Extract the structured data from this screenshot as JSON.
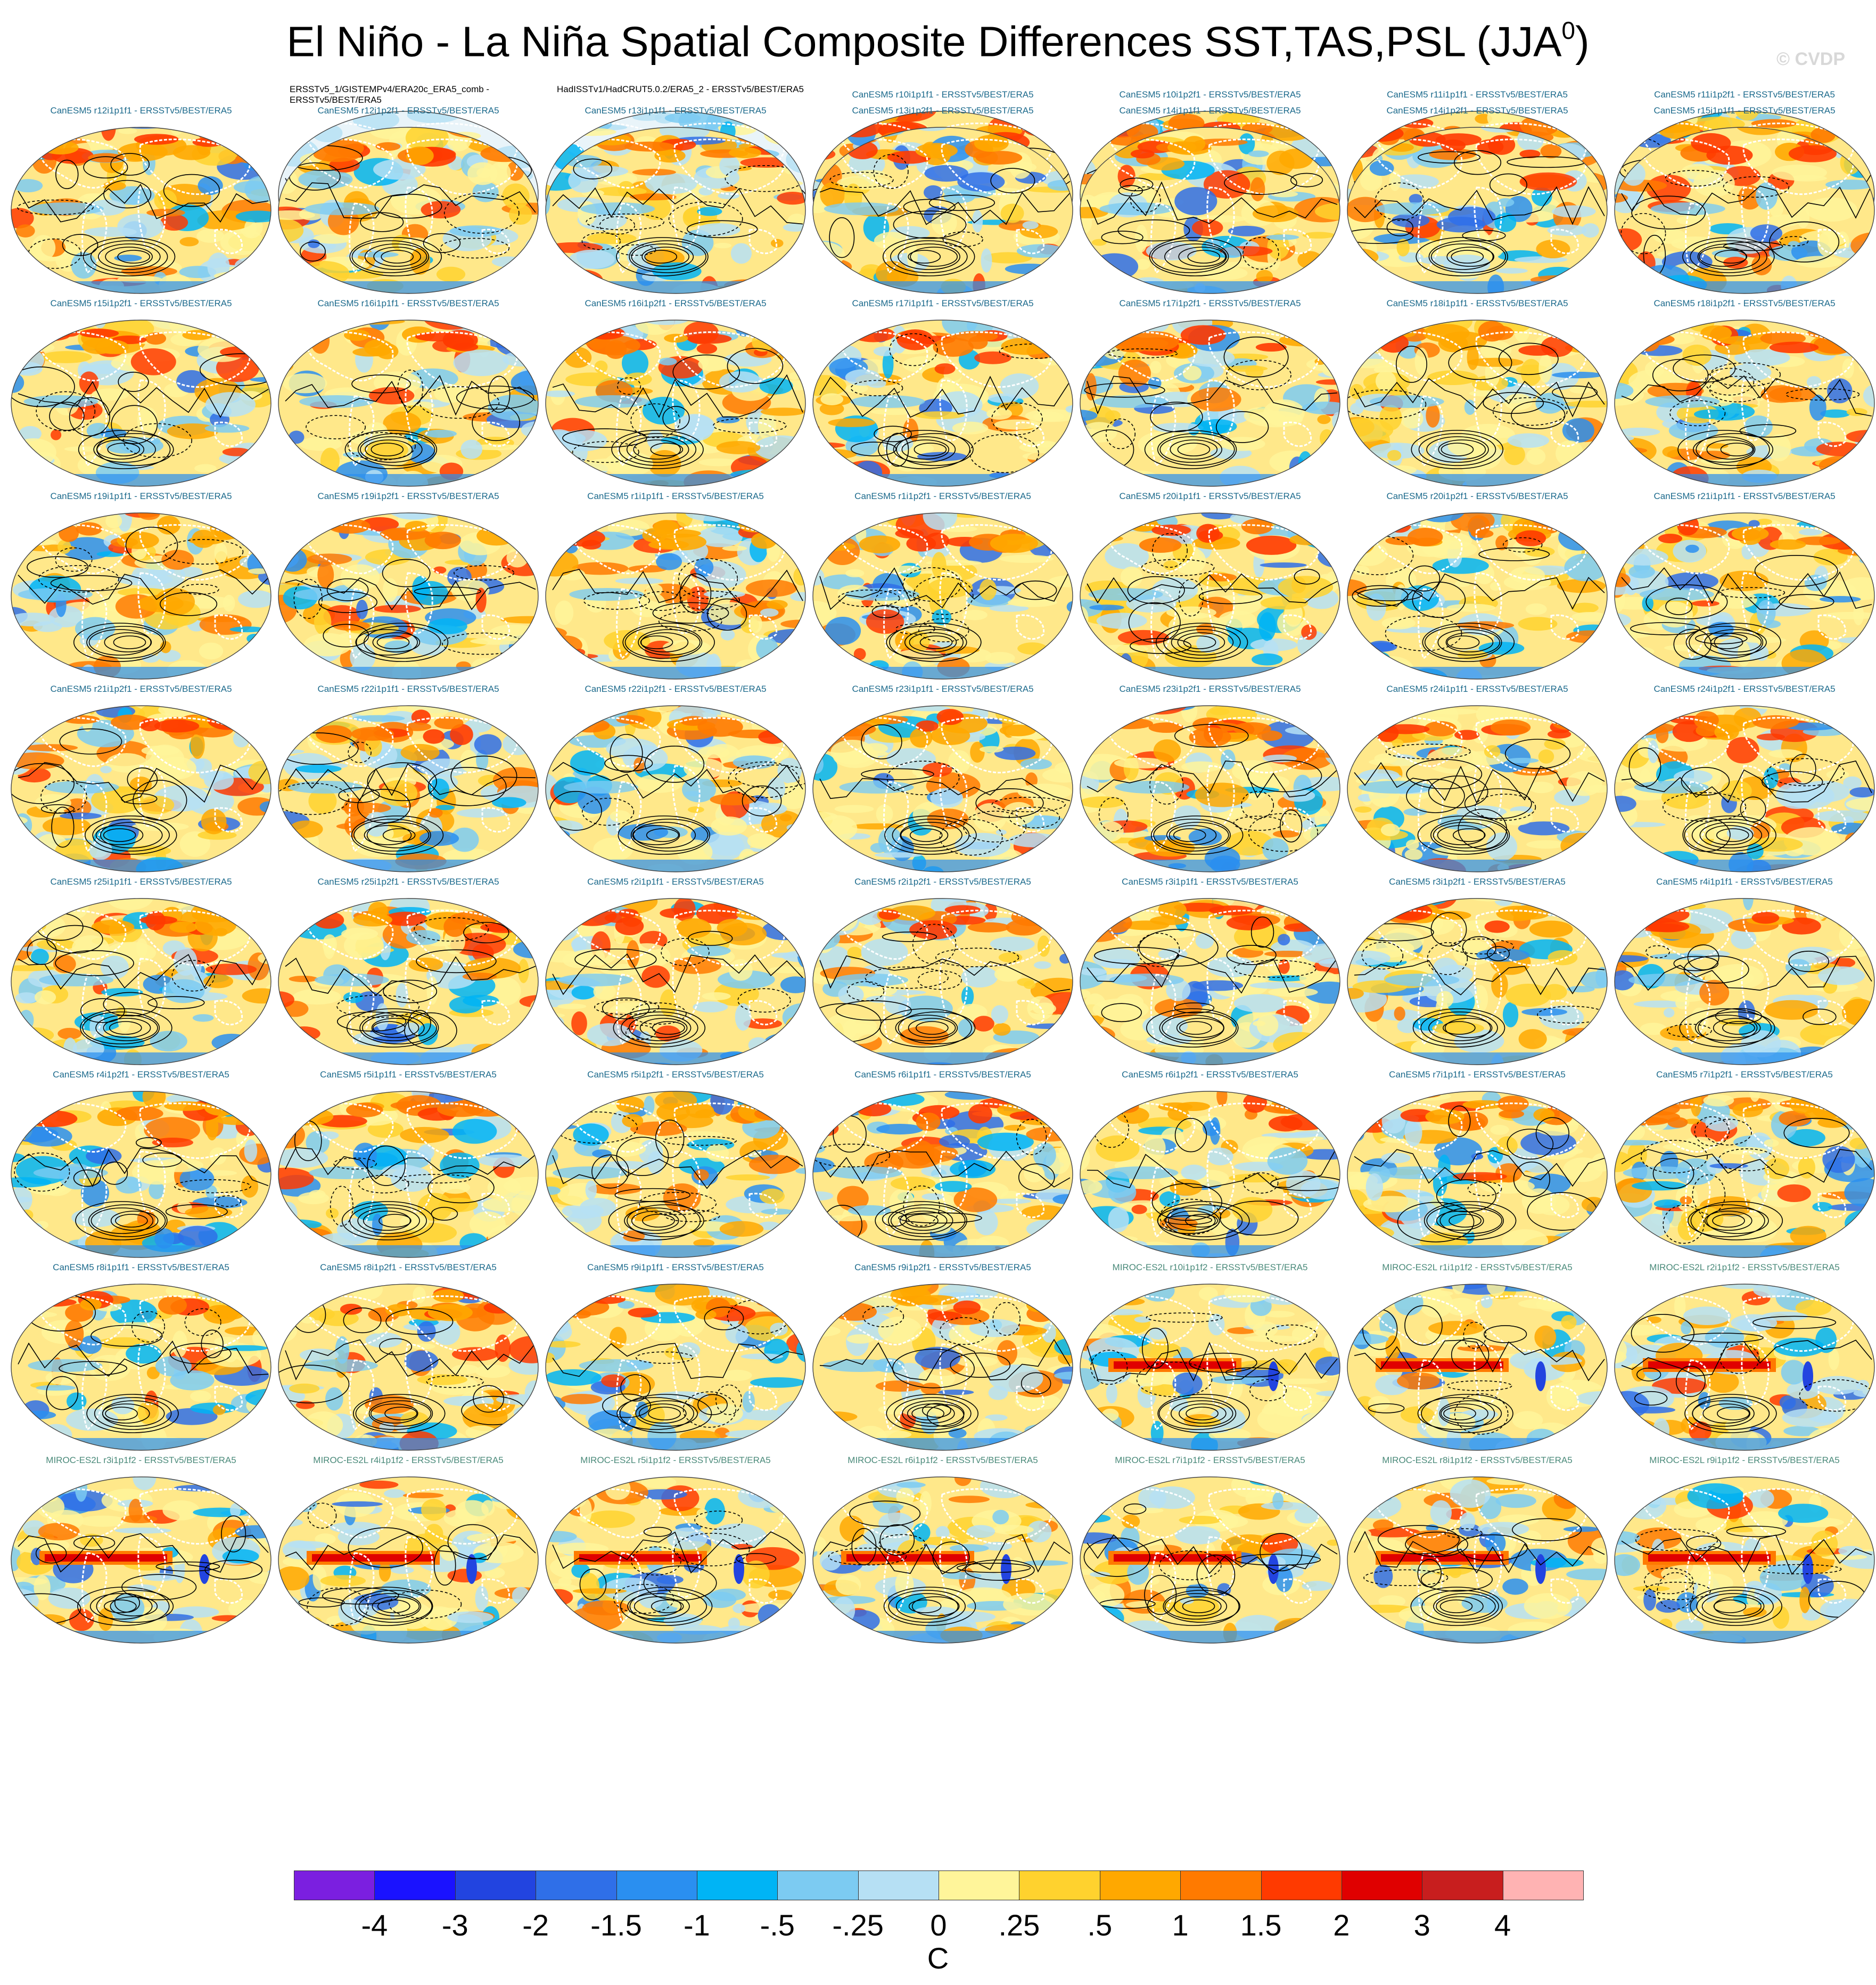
{
  "title": "El Niño - La Niña Spatial Composite Differences SST,TAS,PSL (JJA",
  "title_sup": "0",
  "title_close": ")",
  "watermark": "© CVDP",
  "units": "C",
  "colors": {
    "model_label": "#1c6a8c",
    "miroc_label": "#4a8a7a",
    "land_contour": "#ffffff",
    "psl_contour": "#000000"
  },
  "colorbar": {
    "colors": [
      "#7b1fe0",
      "#1a12ff",
      "#2244e0",
      "#2f6fe8",
      "#2a8ff0",
      "#00b4f5",
      "#7ccbf2",
      "#b6e0f4",
      "#fff59a",
      "#ffd22e",
      "#ffa800",
      "#ff7a00",
      "#ff3a00",
      "#e00000",
      "#c81e1e",
      "#ffb3b3"
    ],
    "labels": [
      "-4",
      "-3",
      "-2",
      "-1.5",
      "-1",
      "-.5",
      "-.25",
      "0",
      ".25",
      ".5",
      "1",
      "1.5",
      "2",
      "3",
      "4"
    ]
  },
  "panels": [
    {
      "label": "ERSSTv5_1/GISTEMPv4/ERA20c_ERA5_comb - ERSSTv5/BEST/ERA5",
      "kind": "obs",
      "style": "obs"
    },
    {
      "label": "HadISSTv1/HadCRUT5.0.2/ERA5_2 - ERSSTv5/BEST/ERA5",
      "kind": "obs",
      "style": "obs"
    },
    {
      "label": "CanESM5 r10i1p1f1 - ERSSTv5/BEST/ERA5",
      "kind": "model",
      "style": "can"
    },
    {
      "label": "CanESM5 r10i1p2f1 - ERSSTv5/BEST/ERA5",
      "kind": "model",
      "style": "can"
    },
    {
      "label": "CanESM5 r11i1p1f1 - ERSSTv5/BEST/ERA5",
      "kind": "model",
      "style": "can"
    },
    {
      "label": "CanESM5 r11i1p2f1 - ERSSTv5/BEST/ERA5",
      "kind": "model",
      "style": "can"
    },
    {
      "label": "CanESM5 r12i1p1f1 - ERSSTv5/BEST/ERA5",
      "kind": "model",
      "style": "can"
    },
    {
      "label": "CanESM5 r12i1p2f1 - ERSSTv5/BEST/ERA5",
      "kind": "model",
      "style": "can"
    },
    {
      "label": "CanESM5 r13i1p1f1 - ERSSTv5/BEST/ERA5",
      "kind": "model",
      "style": "can"
    },
    {
      "label": "CanESM5 r13i1p2f1 - ERSSTv5/BEST/ERA5",
      "kind": "model",
      "style": "can"
    },
    {
      "label": "CanESM5 r14i1p1f1 - ERSSTv5/BEST/ERA5",
      "kind": "model",
      "style": "can"
    },
    {
      "label": "CanESM5 r14i1p2f1 - ERSSTv5/BEST/ERA5",
      "kind": "model",
      "style": "can"
    },
    {
      "label": "CanESM5 r15i1p1f1 - ERSSTv5/BEST/ERA5",
      "kind": "model",
      "style": "can"
    },
    {
      "label": "CanESM5 r15i1p2f1 - ERSSTv5/BEST/ERA5",
      "kind": "model",
      "style": "can"
    },
    {
      "label": "CanESM5 r16i1p1f1 - ERSSTv5/BEST/ERA5",
      "kind": "model",
      "style": "can"
    },
    {
      "label": "CanESM5 r16i1p2f1 - ERSSTv5/BEST/ERA5",
      "kind": "model",
      "style": "can"
    },
    {
      "label": "CanESM5 r17i1p1f1 - ERSSTv5/BEST/ERA5",
      "kind": "model",
      "style": "can"
    },
    {
      "label": "CanESM5 r17i1p2f1 - ERSSTv5/BEST/ERA5",
      "kind": "model",
      "style": "can"
    },
    {
      "label": "CanESM5 r18i1p1f1 - ERSSTv5/BEST/ERA5",
      "kind": "model",
      "style": "can"
    },
    {
      "label": "CanESM5 r18i1p2f1 - ERSSTv5/BEST/ERA5",
      "kind": "model",
      "style": "can"
    },
    {
      "label": "CanESM5 r19i1p1f1 - ERSSTv5/BEST/ERA5",
      "kind": "model",
      "style": "can"
    },
    {
      "label": "CanESM5 r19i1p2f1 - ERSSTv5/BEST/ERA5",
      "kind": "model",
      "style": "can"
    },
    {
      "label": "CanESM5 r1i1p1f1 - ERSSTv5/BEST/ERA5",
      "kind": "model",
      "style": "can"
    },
    {
      "label": "CanESM5 r1i1p2f1 - ERSSTv5/BEST/ERA5",
      "kind": "model",
      "style": "can"
    },
    {
      "label": "CanESM5 r20i1p1f1 - ERSSTv5/BEST/ERA5",
      "kind": "model",
      "style": "can"
    },
    {
      "label": "CanESM5 r20i1p2f1 - ERSSTv5/BEST/ERA5",
      "kind": "model",
      "style": "can"
    },
    {
      "label": "CanESM5 r21i1p1f1 - ERSSTv5/BEST/ERA5",
      "kind": "model",
      "style": "can"
    },
    {
      "label": "CanESM5 r21i1p2f1 - ERSSTv5/BEST/ERA5",
      "kind": "model",
      "style": "can"
    },
    {
      "label": "CanESM5 r22i1p1f1 - ERSSTv5/BEST/ERA5",
      "kind": "model",
      "style": "can"
    },
    {
      "label": "CanESM5 r22i1p2f1 - ERSSTv5/BEST/ERA5",
      "kind": "model",
      "style": "can"
    },
    {
      "label": "CanESM5 r23i1p1f1 - ERSSTv5/BEST/ERA5",
      "kind": "model",
      "style": "can"
    },
    {
      "label": "CanESM5 r23i1p2f1 - ERSSTv5/BEST/ERA5",
      "kind": "model",
      "style": "can"
    },
    {
      "label": "CanESM5 r24i1p1f1 - ERSSTv5/BEST/ERA5",
      "kind": "model",
      "style": "can"
    },
    {
      "label": "CanESM5 r24i1p2f1 - ERSSTv5/BEST/ERA5",
      "kind": "model",
      "style": "can"
    },
    {
      "label": "CanESM5 r25i1p1f1 - ERSSTv5/BEST/ERA5",
      "kind": "model",
      "style": "can"
    },
    {
      "label": "CanESM5 r25i1p2f1 - ERSSTv5/BEST/ERA5",
      "kind": "model",
      "style": "can"
    },
    {
      "label": "CanESM5 r2i1p1f1 - ERSSTv5/BEST/ERA5",
      "kind": "model",
      "style": "can"
    },
    {
      "label": "CanESM5 r2i1p2f1 - ERSSTv5/BEST/ERA5",
      "kind": "model",
      "style": "can"
    },
    {
      "label": "CanESM5 r3i1p1f1 - ERSSTv5/BEST/ERA5",
      "kind": "model",
      "style": "can"
    },
    {
      "label": "CanESM5 r3i1p2f1 - ERSSTv5/BEST/ERA5",
      "kind": "model",
      "style": "can"
    },
    {
      "label": "CanESM5 r4i1p1f1 - ERSSTv5/BEST/ERA5",
      "kind": "model",
      "style": "can"
    },
    {
      "label": "CanESM5 r4i1p2f1 - ERSSTv5/BEST/ERA5",
      "kind": "model",
      "style": "can"
    },
    {
      "label": "CanESM5 r5i1p1f1 - ERSSTv5/BEST/ERA5",
      "kind": "model",
      "style": "can"
    },
    {
      "label": "CanESM5 r5i1p2f1 - ERSSTv5/BEST/ERA5",
      "kind": "model",
      "style": "can"
    },
    {
      "label": "CanESM5 r6i1p1f1 - ERSSTv5/BEST/ERA5",
      "kind": "model",
      "style": "can"
    },
    {
      "label": "CanESM5 r6i1p2f1 - ERSSTv5/BEST/ERA5",
      "kind": "model",
      "style": "can"
    },
    {
      "label": "CanESM5 r7i1p1f1 - ERSSTv5/BEST/ERA5",
      "kind": "model",
      "style": "can"
    },
    {
      "label": "CanESM5 r7i1p2f1 - ERSSTv5/BEST/ERA5",
      "kind": "model",
      "style": "can"
    },
    {
      "label": "CanESM5 r8i1p1f1 - ERSSTv5/BEST/ERA5",
      "kind": "model",
      "style": "can"
    },
    {
      "label": "CanESM5 r8i1p2f1 - ERSSTv5/BEST/ERA5",
      "kind": "model",
      "style": "can"
    },
    {
      "label": "CanESM5 r9i1p1f1 - ERSSTv5/BEST/ERA5",
      "kind": "model",
      "style": "can"
    },
    {
      "label": "CanESM5 r9i1p2f1 - ERSSTv5/BEST/ERA5",
      "kind": "model",
      "style": "can"
    },
    {
      "label": "MIROC-ES2L r10i1p1f2 - ERSSTv5/BEST/ERA5",
      "kind": "model",
      "style": "miroc"
    },
    {
      "label": "MIROC-ES2L r1i1p1f2 - ERSSTv5/BEST/ERA5",
      "kind": "model",
      "style": "miroc"
    },
    {
      "label": "MIROC-ES2L r2i1p1f2 - ERSSTv5/BEST/ERA5",
      "kind": "model",
      "style": "miroc"
    },
    {
      "label": "MIROC-ES2L r3i1p1f2 - ERSSTv5/BEST/ERA5",
      "kind": "model",
      "style": "miroc"
    },
    {
      "label": "MIROC-ES2L r4i1p1f2 - ERSSTv5/BEST/ERA5",
      "kind": "model",
      "style": "miroc"
    },
    {
      "label": "MIROC-ES2L r5i1p1f2 - ERSSTv5/BEST/ERA5",
      "kind": "model",
      "style": "miroc"
    },
    {
      "label": "MIROC-ES2L r6i1p1f2 - ERSSTv5/BEST/ERA5",
      "kind": "model",
      "style": "miroc"
    },
    {
      "label": "MIROC-ES2L r7i1p1f2 - ERSSTv5/BEST/ERA5",
      "kind": "model",
      "style": "miroc"
    },
    {
      "label": "MIROC-ES2L r8i1p1f2 - ERSSTv5/BEST/ERA5",
      "kind": "model",
      "style": "miroc"
    },
    {
      "label": "MIROC-ES2L r9i1p1f2 - ERSSTv5/BEST/ERA5",
      "kind": "model",
      "style": "miroc"
    }
  ]
}
